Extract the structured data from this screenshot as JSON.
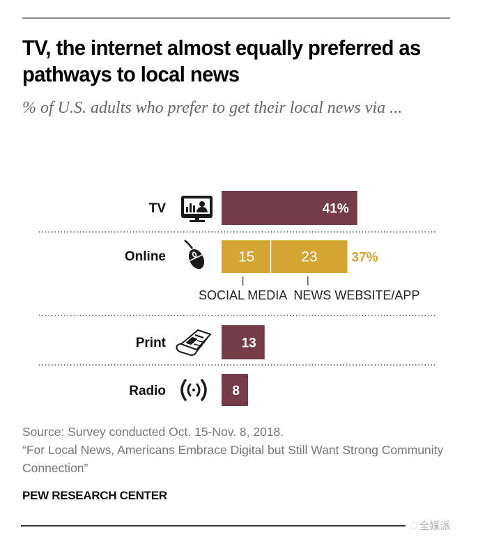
{
  "header": {
    "title": "TV, the internet almost equally preferred as pathways to local news",
    "subtitle": "% of U.S. adults who prefer to get their local news via ..."
  },
  "colors": {
    "maroon": "#733c46",
    "gold": "#d4a533",
    "gold_text": "#d4a533"
  },
  "chart_data": {
    "type": "bar",
    "orientation": "horizontal",
    "stacked": true,
    "title": "TV, the internet almost equally preferred as pathways to local news",
    "subtitle": "% of U.S. adults who prefer to get their local news via ...",
    "xlabel": "",
    "ylabel": "",
    "xlim": [
      0,
      41
    ],
    "grid": false,
    "legend": "none",
    "categories": [
      "TV",
      "Online",
      "Print",
      "Radio"
    ],
    "rows": [
      {
        "label": "TV",
        "icon": "tv-icon",
        "segments": [
          {
            "name": "TV",
            "value": 41,
            "label": "41%",
            "color": "#733c46"
          }
        ],
        "total_label": ""
      },
      {
        "label": "Online",
        "icon": "mouse-icon",
        "segments": [
          {
            "name": "SOCIAL MEDIA",
            "value": 15,
            "label": "15",
            "color": "#d4a533"
          },
          {
            "name": "NEWS WEBSITE/APP",
            "value": 23,
            "label": "23",
            "color": "#d4a533"
          }
        ],
        "total_label": "37%"
      },
      {
        "label": "Print",
        "icon": "newspaper-icon",
        "segments": [
          {
            "name": "Print",
            "value": 13,
            "label": "13",
            "color": "#733c46"
          }
        ],
        "total_label": ""
      },
      {
        "label": "Radio",
        "icon": "radio-waves-icon",
        "segments": [
          {
            "name": "Radio",
            "value": 8,
            "label": "8",
            "color": "#733c46"
          }
        ],
        "total_label": ""
      }
    ],
    "annotations": [
      "SOCIAL MEDIA",
      "NEWS WEBSITE/APP"
    ]
  },
  "footer": {
    "source_line1": "Source: Survey conducted Oct. 15-Nov. 8, 2018.",
    "source_line2": "“For Local News, Americans Embrace Digital but Still Want Strong Community Connection”",
    "credit": "PEW RESEARCH CENTER",
    "watermark": "全媒派"
  }
}
